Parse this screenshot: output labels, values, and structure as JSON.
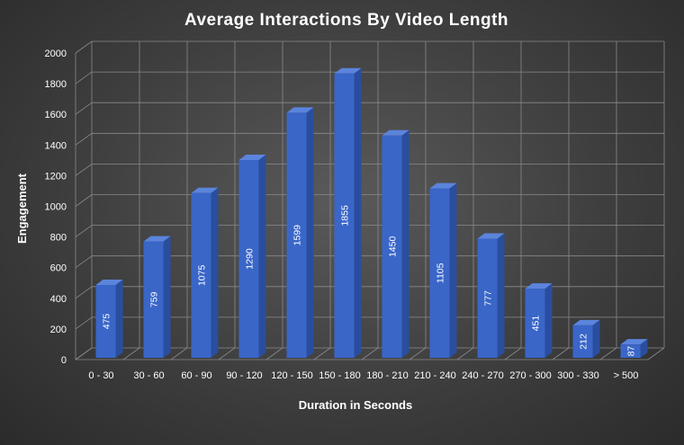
{
  "chart_data": {
    "type": "bar",
    "title": "Average Interactions By Video Length",
    "xlabel": "Duration in Seconds",
    "ylabel": "Engagement",
    "categories": [
      "0 - 30",
      "30 - 60",
      "60 - 90",
      "90 - 120",
      "120 - 150",
      "150 - 180",
      "180 - 210",
      "210 - 240",
      "240 - 270",
      "270 - 300",
      "300 - 330",
      "> 500"
    ],
    "values": [
      475,
      759,
      1075,
      1290,
      1599,
      1855,
      1450,
      1105,
      777,
      451,
      212,
      87
    ],
    "data_labels": [
      "475",
      "759",
      "1075",
      "1290",
      "1599",
      "1855",
      "1450",
      "1105",
      "777",
      "451",
      "212",
      "87"
    ],
    "ylim": [
      0,
      2000
    ],
    "yticks": [
      "0",
      "200",
      "400",
      "600",
      "800",
      "1000",
      "1200",
      "1400",
      "1600",
      "1800",
      "2000"
    ],
    "grid": true,
    "legend": "none",
    "style": "3d-column",
    "colors": {
      "bar_front": "#3a66c8",
      "bar_side": "#2a4e9e",
      "bar_top": "#5b84dc",
      "grid": "#8a8a8a",
      "text": "#ffffff"
    }
  }
}
